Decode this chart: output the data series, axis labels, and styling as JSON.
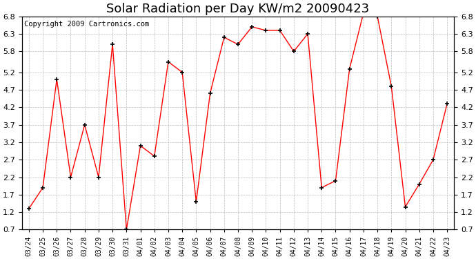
{
  "title": "Solar Radiation per Day KW/m2 20090423",
  "copyright": "Copyright 2009 Cartronics.com",
  "labels": [
    "03/24",
    "03/25",
    "03/26",
    "03/27",
    "03/28",
    "03/29",
    "03/30",
    "03/31",
    "04/01",
    "04/02",
    "04/03",
    "04/04",
    "04/05",
    "04/06",
    "04/07",
    "04/08",
    "04/09",
    "04/10",
    "04/11",
    "04/12",
    "04/13",
    "04/14",
    "04/15",
    "04/16",
    "04/17",
    "04/18",
    "04/19",
    "04/20",
    "04/21",
    "04/22",
    "04/23"
  ],
  "values": [
    1.3,
    1.9,
    5.0,
    2.2,
    3.7,
    2.2,
    6.0,
    0.7,
    3.1,
    2.8,
    5.5,
    5.2,
    1.5,
    4.6,
    6.2,
    6.0,
    6.5,
    6.4,
    6.4,
    5.8,
    6.3,
    1.9,
    2.1,
    5.3,
    6.9,
    6.8,
    4.8,
    1.35,
    2.0,
    2.7,
    4.3
  ],
  "ylim": [
    0.7,
    6.8
  ],
  "yticks": [
    0.7,
    1.2,
    1.7,
    2.2,
    2.7,
    3.2,
    3.7,
    4.2,
    4.7,
    5.2,
    5.8,
    6.3,
    6.8
  ],
  "line_color": "#ff0000",
  "marker": "+",
  "marker_color": "#000000",
  "bg_color": "#ffffff",
  "plot_bg_color": "#ffffff",
  "grid_color": "#bbbbbb",
  "title_fontsize": 13,
  "copyright_fontsize": 7.5
}
